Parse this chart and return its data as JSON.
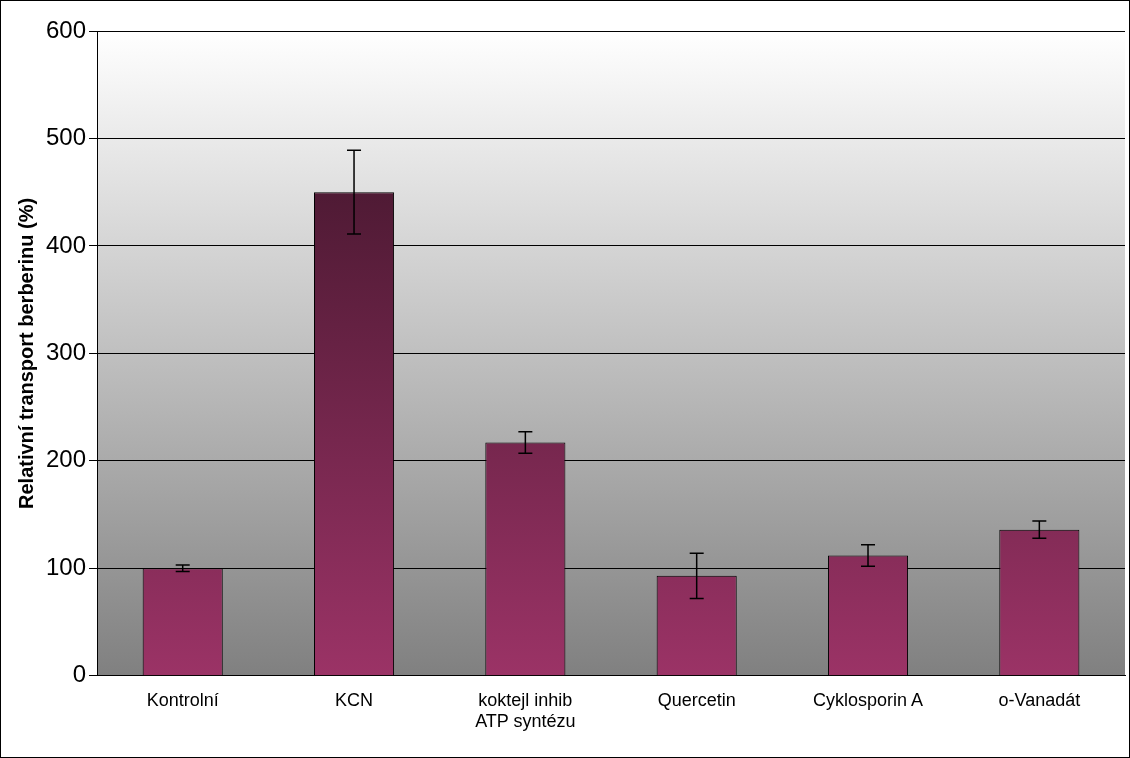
{
  "chart_data": {
    "type": "bar",
    "ylabel": "Relativní transport berberinu (%)",
    "categories": [
      "Kontrolní",
      "KCN",
      "koktejl inhib ATP syntézu",
      "Quercetin",
      "Cyklosporin A",
      "o-Vanadát"
    ],
    "values": [
      100,
      450,
      217,
      93,
      112,
      136
    ],
    "errors": [
      3,
      39,
      10,
      21,
      10,
      8
    ],
    "color": "#9b3366",
    "ylim": [
      0,
      600
    ],
    "yticks": [
      0,
      100,
      200,
      300,
      400,
      500,
      600
    ],
    "grid": "y"
  }
}
